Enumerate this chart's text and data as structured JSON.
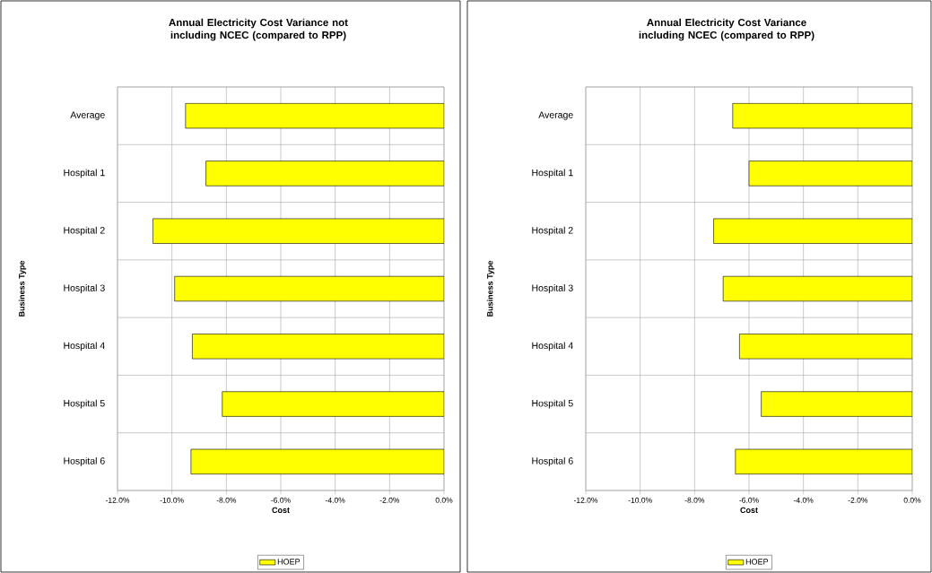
{
  "chart_data": [
    {
      "type": "bar",
      "orientation": "horizontal",
      "title": "Annual Electricity Cost Variance not including NCEC (compared to RPP)",
      "xlabel": "Cost",
      "ylabel": "Business Type",
      "categories": [
        "Average",
        "Hospital 1",
        "Hospital 2",
        "Hospital 3",
        "Hospital 4",
        "Hospital 5",
        "Hospital 6"
      ],
      "series": [
        {
          "name": "HOEP",
          "color": "#ffff00",
          "values": [
            -9.5,
            -8.75,
            -10.7,
            -9.9,
            -9.25,
            -8.15,
            -9.3
          ]
        }
      ],
      "xlim": [
        -12,
        0
      ],
      "xticks": [
        {
          "value": -12,
          "label": "-12.0%"
        },
        {
          "value": -10,
          "label": "-10.0%"
        },
        {
          "value": -8,
          "label": "-8.0%"
        },
        {
          "value": -6,
          "label": "-6.0%"
        },
        {
          "value": -4,
          "label": "-4.0%"
        },
        {
          "value": -2,
          "label": "-2.0%"
        },
        {
          "value": 0,
          "label": "0.0%"
        }
      ],
      "grid": true,
      "legend": "bottom"
    },
    {
      "type": "bar",
      "orientation": "horizontal",
      "title": "Annual Electricity Cost Variance including NCEC (compared to RPP)",
      "xlabel": "Cost",
      "ylabel": "Business Type",
      "categories": [
        "Average",
        "Hospital 1",
        "Hospital 2",
        "Hospital 3",
        "Hospital 4",
        "Hospital 5",
        "Hospital 6"
      ],
      "series": [
        {
          "name": "HOEP",
          "color": "#ffff00",
          "values": [
            -6.6,
            -6.0,
            -7.3,
            -6.95,
            -6.35,
            -5.55,
            -6.5
          ]
        }
      ],
      "xlim": [
        -12,
        0
      ],
      "xticks": [
        {
          "value": -12,
          "label": "-12.0%"
        },
        {
          "value": -10,
          "label": "-10.0%"
        },
        {
          "value": -8,
          "label": "-8.0%"
        },
        {
          "value": -6,
          "label": "-6.0%"
        },
        {
          "value": -4,
          "label": "-4.0%"
        },
        {
          "value": -2,
          "label": "-2.0%"
        },
        {
          "value": 0,
          "label": "0.0%"
        }
      ],
      "grid": true,
      "legend": "bottom"
    }
  ]
}
